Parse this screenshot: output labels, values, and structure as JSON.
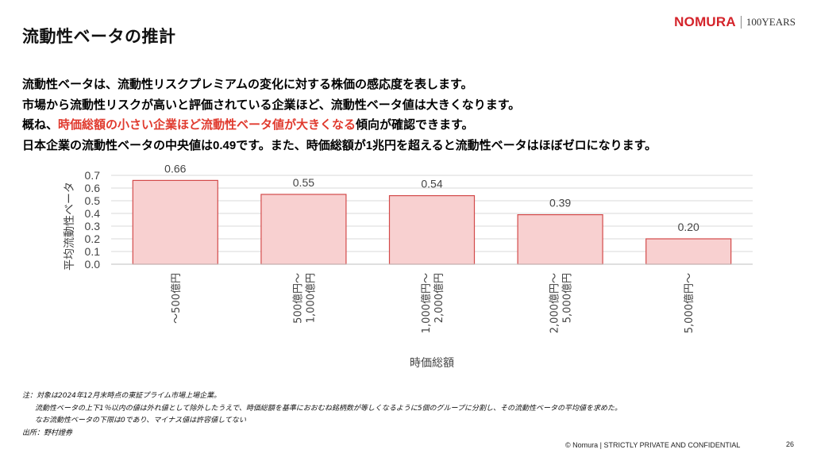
{
  "page": {
    "title": "流動性ベータの推計",
    "logo": {
      "brand": "NOMURA",
      "years": "100YEARS"
    },
    "bullets": [
      {
        "text": "流動性ベータは、流動性リスクプレミアムの変化に対する株価の感応度を表します。"
      },
      {
        "text": "市場から流動性リスクが高いと評価されている企業ほど、流動性ベータ値は大きくなります。"
      },
      {
        "prefix": "概ね、",
        "highlight": "時価総額の小さい企業ほど流動性ベータ値が大きくなる",
        "suffix": "傾向が確認できます。"
      },
      {
        "text": "日本企業の流動性ベータの中央値は0.49です。また、時価総額が1兆円を超えると流動性ベータはほぼゼロになります。"
      }
    ],
    "highlight_color": "#e03a2e",
    "notes": {
      "n1": "注：対象は2024年12月末時点の東証プライム市場上場企業。",
      "n2": "流動性ベータの上下1％以内の値は外れ値として除外したうえで、時価総額を基準におおむね銘柄数が等しくなるように5個のグループに分割し、その流動性ベータの平均値を求めた。",
      "n3": "なお流動性ベータの下限は0であり、マイナス値は許容値してない",
      "source": "出所：野村證券"
    },
    "footer": {
      "copyright": "© Nomura | STRICTLY PRIVATE AND CONFIDENTIAL",
      "page_number": "26"
    }
  },
  "chart_data": {
    "type": "bar",
    "categories": [
      [
        "～500億円"
      ],
      [
        "500億円～",
        "1,000億円"
      ],
      [
        "1,000億円～",
        "2,000億円"
      ],
      [
        "2,000億円～",
        "5,000億円"
      ],
      [
        "5,000億円～"
      ]
    ],
    "values": [
      0.66,
      0.55,
      0.54,
      0.39,
      0.2
    ],
    "value_labels": [
      "0.66",
      "0.55",
      "0.54",
      "0.39",
      "0.20"
    ],
    "xlabel": "時価総額",
    "ylabel": "平均流動性ベータ",
    "ylim": [
      0,
      0.7
    ],
    "yticks": [
      "0.0",
      "0.1",
      "0.2",
      "0.3",
      "0.4",
      "0.5",
      "0.6",
      "0.7"
    ],
    "grid": true,
    "bar_fill": "#f8d0d0",
    "bar_stroke": "#d34a4a"
  }
}
